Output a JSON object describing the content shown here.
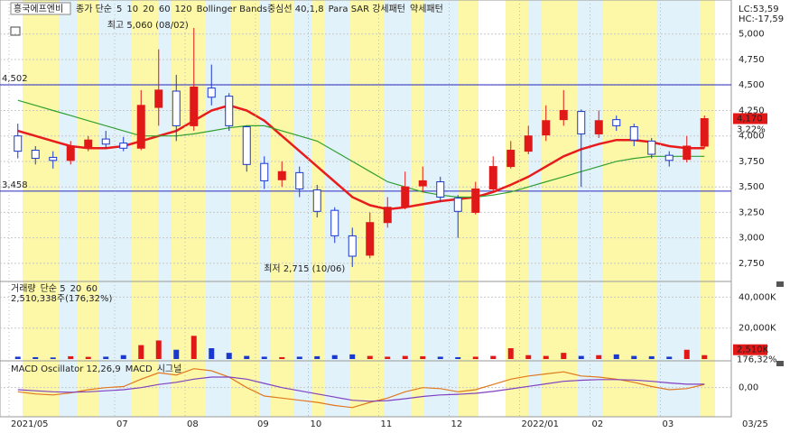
{
  "chart_data": [
    {
      "type": "candlestick",
      "stock_name": "흥국에프엔비",
      "legend_items": [
        {
          "text": "종가 단순",
          "color": "#c02020"
        },
        {
          "text": "5",
          "color": "#c02020"
        },
        {
          "text": "10",
          "color": "#2040c0"
        },
        {
          "text": "20",
          "color": "#e02020"
        },
        {
          "text": "60",
          "color": "#30a030"
        },
        {
          "text": "120",
          "color": "#808080"
        },
        {
          "text": "Bollinger Bands중심선 40,1,8",
          "color": "#b030d0"
        },
        {
          "text": "Para SAR 강세패턴",
          "color": "#404040"
        },
        {
          "text": "약세패턴",
          "color": "#404040"
        }
      ],
      "corner_labels": [
        {
          "text": "LC:53,59",
          "color": "#e02020"
        },
        {
          "text": "HC:-17,59",
          "color": "#2040d0"
        }
      ],
      "annotations": [
        "최고 5,060 (08/02)",
        "최저 2,715 (10/06)"
      ],
      "categories": [
        "2021/05",
        null,
        null,
        null,
        null,
        null,
        "07",
        null,
        null,
        null,
        "08",
        null,
        null,
        null,
        "09",
        null,
        null,
        "10",
        null,
        null,
        null,
        "11",
        null,
        null,
        null,
        "12",
        null,
        null,
        null,
        "2022/01",
        null,
        null,
        null,
        "02",
        null,
        null,
        null,
        "03",
        null,
        null
      ],
      "x_end_label": "03/25",
      "open": [
        4000,
        3860,
        3790,
        3760,
        3890,
        3970,
        3930,
        3880,
        4280,
        4440,
        4100,
        4470,
        4390,
        4090,
        3730,
        3570,
        3640,
        3470,
        3270,
        3020,
        2830,
        3150,
        3310,
        3510,
        3550,
        3390,
        3250,
        3480,
        3700,
        3850,
        4010,
        4160,
        4240,
        4020,
        4160,
        4090,
        3950,
        3810,
        3770,
        3900
      ],
      "high": [
        4120,
        3900,
        3850,
        3950,
        4000,
        4050,
        3990,
        4450,
        4850,
        4600,
        5060,
        4700,
        4420,
        4100,
        3800,
        3750,
        3700,
        3520,
        3300,
        3100,
        3250,
        3400,
        3650,
        3700,
        3600,
        3420,
        3550,
        3800,
        3950,
        4100,
        4300,
        4450,
        4260,
        4250,
        4200,
        4120,
        3980,
        3850,
        4000,
        4200
      ],
      "low": [
        3780,
        3720,
        3680,
        3720,
        3850,
        3880,
        3850,
        3860,
        4100,
        3950,
        4050,
        4300,
        4050,
        3650,
        3480,
        3500,
        3400,
        3200,
        2950,
        2715,
        2800,
        3100,
        3280,
        3450,
        3350,
        3000,
        3230,
        3450,
        3680,
        3820,
        3950,
        4100,
        3500,
        3980,
        4050,
        3900,
        3780,
        3700,
        3740,
        3880
      ],
      "close": [
        3850,
        3780,
        3760,
        3900,
        3960,
        3920,
        3880,
        4300,
        4450,
        4100,
        4480,
        4380,
        4100,
        3720,
        3560,
        3650,
        3480,
        3260,
        3020,
        2820,
        3150,
        3300,
        3500,
        3560,
        3400,
        3260,
        3480,
        3700,
        3860,
        4000,
        4150,
        4250,
        4020,
        4150,
        4100,
        3960,
        3820,
        3760,
        3900,
        4170
      ],
      "up_color": "#e01818",
      "down_color": "#1838d0",
      "series": [
        {
          "name": "20",
          "color": "#e81c1c",
          "values": [
            4050,
            4000,
            3950,
            3900,
            3880,
            3880,
            3900,
            3950,
            4000,
            4050,
            4150,
            4250,
            4300,
            4250,
            4150,
            4000,
            3850,
            3700,
            3550,
            3400,
            3320,
            3280,
            3300,
            3330,
            3360,
            3380,
            3400,
            3450,
            3520,
            3600,
            3700,
            3800,
            3870,
            3920,
            3960,
            3960,
            3940,
            3900,
            3880,
            3880
          ]
        },
        {
          "name": "60",
          "color": "#30a030",
          "values": [
            4350,
            4300,
            4250,
            4200,
            4150,
            4100,
            4050,
            4000,
            4000,
            4000,
            4020,
            4050,
            4080,
            4100,
            4100,
            4050,
            4000,
            3950,
            3850,
            3750,
            3650,
            3550,
            3500,
            3450,
            3420,
            3400,
            3400,
            3420,
            3450,
            3500,
            3550,
            3600,
            3650,
            3700,
            3750,
            3780,
            3800,
            3800,
            3800,
            3800
          ]
        }
      ],
      "hlines": [
        {
          "value": 4502,
          "label": "4,502"
        },
        {
          "value": 3458,
          "label": "3,458"
        }
      ],
      "hline_color": "#2828c0",
      "last_price": {
        "value": 4170,
        "label": "4,170"
      },
      "change_label": "3,22%",
      "ylim": [
        2590,
        5210
      ],
      "yticks": [
        {
          "value": 2750,
          "label": "2,750"
        },
        {
          "value": 3000,
          "label": "3,000"
        },
        {
          "value": 3250,
          "label": "3,250"
        },
        {
          "value": 3500,
          "label": "3,500"
        },
        {
          "value": 3750,
          "label": "3,750"
        },
        {
          "value": 4000,
          "label": "4,000"
        },
        {
          "value": 4250,
          "label": "4,250"
        },
        {
          "value": 4500,
          "label": "4,500"
        },
        {
          "value": 4750,
          "label": "4,750"
        },
        {
          "value": 5000,
          "label": "5,000"
        }
      ],
      "grid": true
    },
    {
      "type": "bar",
      "legend_items": [
        {
          "text": "거래량",
          "color": "#c02020"
        },
        {
          "text": "단순 5",
          "color": "#c02020"
        },
        {
          "text": "20",
          "color": "#e0a020"
        },
        {
          "text": "60",
          "color": "#30a030"
        }
      ],
      "info": "2,510,338주(176,32%)",
      "values": [
        1500,
        1200,
        1000,
        1800,
        1400,
        1500,
        2500,
        9000,
        12000,
        6000,
        15000,
        7000,
        4000,
        2000,
        1500,
        1200,
        1500,
        1800,
        2500,
        3000,
        2000,
        1500,
        2000,
        1800,
        1500,
        1200,
        1500,
        2000,
        7000,
        2500,
        2000,
        4000,
        2000,
        2500,
        3000,
        2000,
        1800,
        1500,
        6000,
        2510
      ],
      "last_label": {
        "value": 2510,
        "label": "2,510K"
      },
      "change_label": "176,32%",
      "ylim": [
        0,
        49000
      ],
      "yticks": [
        {
          "value": 20000,
          "label": "20,000K"
        },
        {
          "value": 40000,
          "label": "40,000K"
        }
      ],
      "grid": true
    },
    {
      "type": "line",
      "title": "MACD Oscillator 12,26,9",
      "series": [
        {
          "name": "MACD",
          "color": "#e07820",
          "values": [
            -20,
            -30,
            -35,
            -25,
            -10,
            0,
            5,
            40,
            70,
            60,
            90,
            80,
            50,
            0,
            -40,
            -50,
            -60,
            -70,
            -85,
            -95,
            -70,
            -50,
            -20,
            0,
            -5,
            -20,
            -10,
            15,
            40,
            55,
            65,
            75,
            55,
            50,
            40,
            25,
            5,
            -10,
            -5,
            15
          ]
        },
        {
          "name": "시그널",
          "color": "#8040c0",
          "values": [
            -10,
            -15,
            -20,
            -22,
            -20,
            -15,
            -10,
            0,
            15,
            25,
            40,
            50,
            50,
            40,
            20,
            0,
            -15,
            -30,
            -45,
            -60,
            -65,
            -62,
            -53,
            -42,
            -35,
            -32,
            -27,
            -18,
            -6,
            6,
            18,
            30,
            35,
            38,
            38,
            36,
            30,
            22,
            16,
            16
          ]
        }
      ],
      "ylim": [
        -130,
        110
      ],
      "yticks": [
        {
          "value": 0,
          "label": "0,00"
        }
      ],
      "grid": true
    }
  ]
}
